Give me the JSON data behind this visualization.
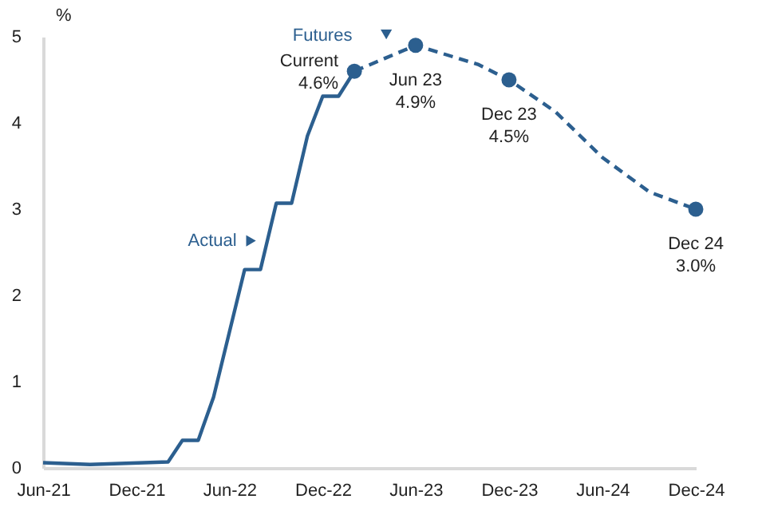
{
  "chart_data": {
    "type": "line",
    "ylabel": "%",
    "series": [
      {
        "name": "Actual",
        "color": "#2c5f8f",
        "line_style": "solid",
        "x": [
          "2021-06",
          "2021-09",
          "2022-02",
          "2022-03",
          "2022-04",
          "2022-05",
          "2022-07",
          "2022-08",
          "2022-09",
          "2022-10",
          "2022-11",
          "2022-12",
          "2023-01",
          "2023-02"
        ],
        "values": [
          0.06,
          0.04,
          0.07,
          0.32,
          0.32,
          0.82,
          2.3,
          2.3,
          3.07,
          3.07,
          3.85,
          4.31,
          4.31,
          4.6
        ]
      },
      {
        "name": "Futures",
        "color": "#2c5f8f",
        "line_style": "dashed",
        "x": [
          "2023-02",
          "2023-06",
          "2023-10",
          "2023-12",
          "2024-03",
          "2024-06",
          "2024-09",
          "2024-12"
        ],
        "values": [
          4.6,
          4.9,
          4.68,
          4.5,
          4.13,
          3.6,
          3.2,
          3.0
        ]
      },
      {
        "type": "scatter",
        "marker": "circle",
        "color": "#2c5f8f",
        "x": [
          "2023-02",
          "2023-06",
          "2023-12",
          "2024-12"
        ],
        "values": [
          4.6,
          4.9,
          4.5,
          3.0
        ]
      }
    ],
    "annotations": [
      {
        "text": "Current\n4.6%",
        "x": "2023-02",
        "y": 4.6
      },
      {
        "text": "Jun 23\n4.9%",
        "x": "2023-06",
        "y": 4.9
      },
      {
        "text": "Dec 23\n4.5%",
        "x": "2023-12",
        "y": 4.5
      },
      {
        "text": "Dec 24\n3.0%",
        "x": "2024-12",
        "y": 3.0
      }
    ],
    "xlim": [
      "2021-06",
      "2024-12"
    ],
    "xticks": [
      {
        "value": "2021-06",
        "label": "Jun-21"
      },
      {
        "value": "2021-12",
        "label": "Dec-21"
      },
      {
        "value": "2022-06",
        "label": "Jun-22"
      },
      {
        "value": "2022-12",
        "label": "Dec-22"
      },
      {
        "value": "2023-06",
        "label": "Jun-23"
      },
      {
        "value": "2023-12",
        "label": "Dec-23"
      },
      {
        "value": "2024-06",
        "label": "Jun-24"
      },
      {
        "value": "2024-12",
        "label": "Dec-24"
      }
    ],
    "ylim": [
      0,
      5
    ],
    "yticks": [
      0,
      1,
      2,
      3,
      4,
      5
    ],
    "legend": "top left"
  }
}
